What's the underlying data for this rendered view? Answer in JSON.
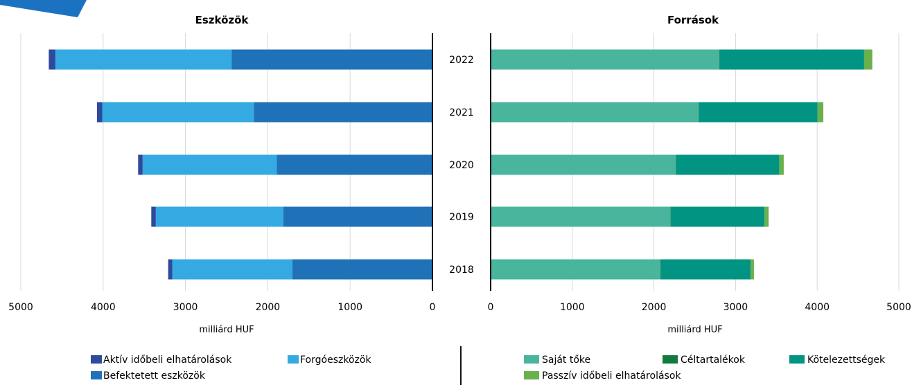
{
  "chart_data": [
    {
      "type": "bar",
      "orientation": "horizontal",
      "stacked": true,
      "direction": "right-to-left",
      "title": "Eszközök",
      "xlabel": "milliárd HUF",
      "xlim": [
        5000,
        0
      ],
      "xticks": [
        "5000",
        "4000",
        "3000",
        "2000",
        "1000",
        "0"
      ],
      "grid": true,
      "legend_position": "bottom",
      "categories": [
        "2022",
        "2021",
        "2020",
        "2019",
        "2018"
      ],
      "series": [
        {
          "name": "Befektetett eszközök",
          "color": "#1f72b8",
          "values": [
            2440,
            2170,
            1890,
            1810,
            1700
          ]
        },
        {
          "name": "Forgóeszközök",
          "color": "#35aae2",
          "values": [
            2140,
            1840,
            1630,
            1550,
            1460
          ]
        },
        {
          "name": "Aktív időbeli elhatárolások",
          "color": "#2e4a9c",
          "values": [
            80,
            65,
            55,
            55,
            50
          ]
        }
      ],
      "legend_order": [
        "Aktív időbeli elhatárolások",
        "Forgóeszközök",
        "Befektetett eszközök"
      ]
    },
    {
      "type": "bar",
      "orientation": "horizontal",
      "stacked": true,
      "direction": "left-to-right",
      "title": "Források",
      "xlabel": "milliárd HUF",
      "xlim": [
        0,
        5000
      ],
      "xticks": [
        "0",
        "1000",
        "2000",
        "3000",
        "4000",
        "5000"
      ],
      "grid": true,
      "legend_position": "bottom",
      "categories": [
        "2022",
        "2021",
        "2020",
        "2019",
        "2018"
      ],
      "series": [
        {
          "name": "Saját tőke",
          "color": "#48b59c",
          "values": [
            2800,
            2550,
            2270,
            2200,
            2080
          ]
        },
        {
          "name": "Céltartalékok",
          "color": "#127a3c",
          "values": [
            5,
            5,
            5,
            5,
            5
          ]
        },
        {
          "name": "Kötelezettségek",
          "color": "#019482",
          "values": [
            1770,
            1450,
            1260,
            1150,
            1100
          ]
        },
        {
          "name": "Passzív időbeli elhatárolások",
          "color": "#6ab04c",
          "values": [
            100,
            70,
            55,
            50,
            40
          ]
        }
      ],
      "legend_order": [
        "Saját tőke",
        "Céltartalékok",
        "Kötelezettségek",
        "Passzív időbeli elhatárolások"
      ]
    }
  ],
  "colors": {
    "corner_accent": "#1b72c0",
    "axis": "#111111",
    "grid": "#d9d9d9"
  }
}
